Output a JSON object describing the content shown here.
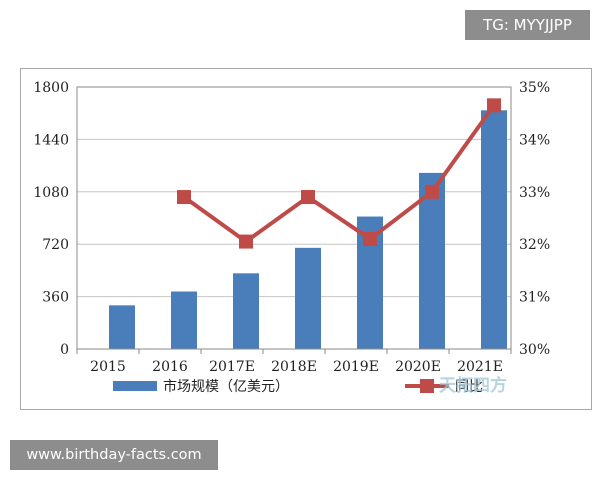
{
  "watermarks": {
    "tag": "TG: MYYJJPP",
    "url": "www.birthday-facts.com"
  },
  "chart_data": {
    "type": "bar",
    "title": "",
    "xlabel": "",
    "ylabel": "",
    "categories": [
      "2015",
      "2016",
      "2017E",
      "2018E",
      "2019E",
      "2020E",
      "2021E"
    ],
    "ylim": [
      0,
      1800
    ],
    "yticks": [
      "0",
      "360",
      "720",
      "1080",
      "1440",
      "1800"
    ],
    "y2lim": [
      30,
      35
    ],
    "y2ticks": [
      "30%",
      "31%",
      "32%",
      "33%",
      "34%",
      "35%"
    ],
    "grid": "horizontal",
    "legend": "bottom",
    "series": [
      {
        "name": "市场规模（亿美元）",
        "type": "bar",
        "axis": "left",
        "color": "#4a7ebb",
        "values": [
          300,
          395,
          520,
          695,
          910,
          1210,
          1640
        ]
      },
      {
        "name": "同比",
        "type": "line",
        "axis": "right",
        "color": "#be4b48",
        "values": [
          null,
          32.9,
          32.05,
          32.9,
          32.1,
          33.0,
          34.65
        ]
      }
    ],
    "annotations": [
      "天拓四方"
    ]
  }
}
